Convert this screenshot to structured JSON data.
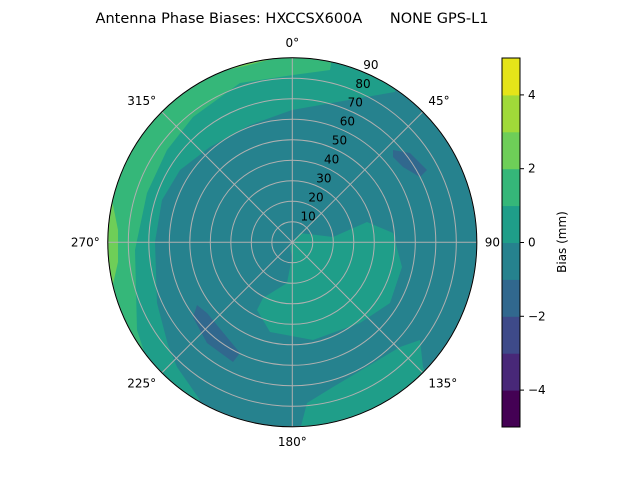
{
  "chart_data": {
    "type": "contour",
    "projection": "polar",
    "title": "Antenna Phase Biases: HXCCSX600A      NONE GPS-L1",
    "angular_ticks": [
      {
        "deg": 0,
        "label": "0°"
      },
      {
        "deg": 45,
        "label": "45°"
      },
      {
        "deg": 90,
        "label": "90"
      },
      {
        "deg": 135,
        "label": "135°"
      },
      {
        "deg": 180,
        "label": "180°"
      },
      {
        "deg": 225,
        "label": "225°"
      },
      {
        "deg": 270,
        "label": "270°"
      },
      {
        "deg": 315,
        "label": "315°"
      }
    ],
    "angular_direction": "clockwise",
    "zero_location": "north",
    "radial_ticks": [
      10,
      20,
      30,
      40,
      50,
      60,
      70,
      80,
      90
    ],
    "radial_range": [
      0,
      90
    ],
    "radial_label_angle_deg": 22.5,
    "grid": true,
    "colorbar": {
      "label": "Bias (mm)",
      "range": [
        -5,
        5
      ],
      "ticks": [
        -4,
        -2,
        0,
        2,
        4
      ],
      "tick_labels": [
        "−4",
        "−2",
        "0",
        "2",
        "4"
      ],
      "levels": [
        -5,
        -4,
        -3,
        -2,
        -1,
        0,
        1,
        2,
        3,
        4,
        5
      ],
      "colors": [
        "#440154",
        "#482878",
        "#3e4a89",
        "#31688e",
        "#26828e",
        "#1f9e89",
        "#35b779",
        "#6ece58",
        "#a0da39",
        "#e5e419"
      ],
      "colormap": "viridis"
    },
    "dominant_level": "-1 to 0",
    "features": [
      {
        "level": "0 to 1",
        "where": "outer ring from north through west to south-west; blob east/south-east of center; patch near south-south-east edge"
      },
      {
        "level": "1 to 2",
        "where": "outer band north-west through west"
      },
      {
        "level": "2 to 3",
        "where": "west edge near 270°, small patch near north edge"
      },
      {
        "level": "-2 to -1",
        "where": "small patches near 45° (elev ~55-65) and 225° (elev ~50-70)"
      }
    ]
  }
}
